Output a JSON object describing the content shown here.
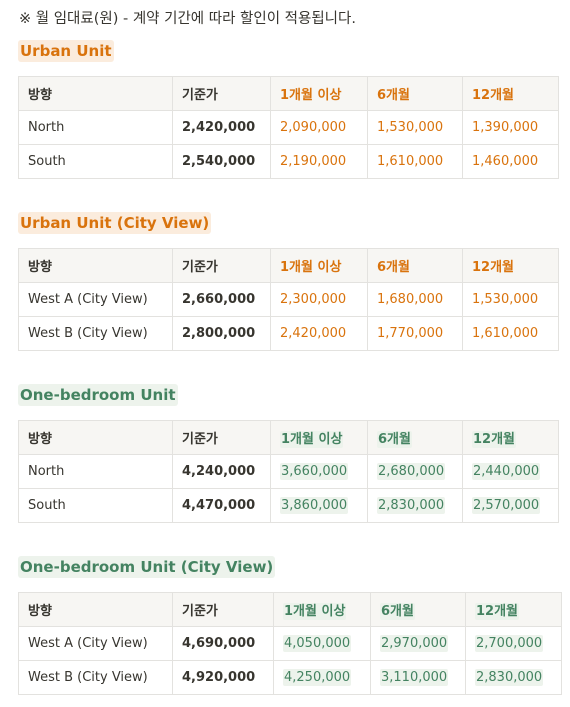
{
  "note": "※ 월 임대료(원) -  계약 기간에 따라 할인이 적용됩니다.",
  "columns": [
    "방향",
    "기준가",
    "1개월 이상",
    "6개월",
    "12개월"
  ],
  "sections": [
    {
      "title": "Urban Unit",
      "rows": [
        [
          "North",
          "2,420,000",
          "2,090,000",
          "1,530,000",
          "1,390,000"
        ],
        [
          "South",
          "2,540,000",
          "2,190,000",
          "1,610,000",
          "1,460,000"
        ]
      ]
    },
    {
      "title": "Urban Unit (City View)",
      "rows": [
        [
          "West A (City View)",
          "2,660,000",
          "2,300,000",
          "1,680,000",
          "1,530,000"
        ],
        [
          "West B (City View)",
          "2,800,000",
          "2,420,000",
          "1,770,000",
          "1,610,000"
        ]
      ]
    },
    {
      "title": "One-bedroom Unit",
      "rows": [
        [
          "North",
          "4,240,000",
          "3,660,000",
          "2,680,000",
          "2,440,000"
        ],
        [
          "South",
          "4,470,000",
          "3,860,000",
          "2,830,000",
          "2,570,000"
        ]
      ]
    },
    {
      "title": "One-bedroom Unit (City View)",
      "rows": [
        [
          "West A (City View)",
          "4,690,000",
          "4,050,000",
          "2,970,000",
          "2,700,000"
        ],
        [
          "West B (City View)",
          "4,920,000",
          "4,250,000",
          "3,110,000",
          "2,830,000"
        ]
      ]
    }
  ],
  "colors": {
    "orange": "#d9730d",
    "orange_bg": "#fbecdd",
    "green": "#448361",
    "green_bg": "#edf3ec"
  }
}
